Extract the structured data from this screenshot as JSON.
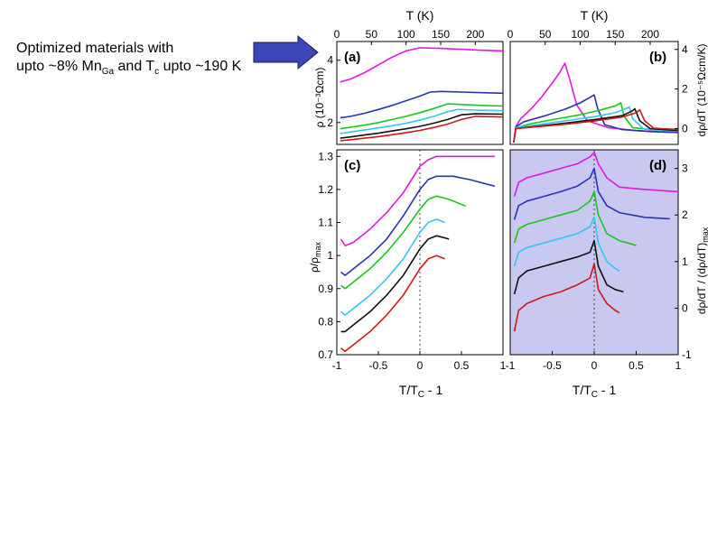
{
  "annotation": {
    "line1": "Optimized materials with",
    "line2_prefix": "upto ~8% Mn",
    "line2_sub1": "Ga",
    "line2_mid": " and T",
    "line2_sub2": "c",
    "line2_suffix": " upto ~190 K",
    "arrow_color": "#3b46b8"
  },
  "axes_labels": {
    "top_x": "T (K)",
    "bottom_x_main": "T/T",
    "bottom_x_sub": "C",
    "bottom_x_tail": " - 1",
    "left_top_y": "ρ (10⁻³Ωcm)",
    "left_bottom_y_main": "ρ/ρ",
    "left_bottom_y_sub": "max",
    "right_top_y": "dρ/dT (10⁻⁵Ωcm/K)",
    "right_bottom_y_main": "dρ/dT / (dρ/dT)",
    "right_bottom_y_sub": "max"
  },
  "chart_data": [
    {
      "id": "a",
      "type": "line",
      "panel_label": "(a)",
      "xlabel": "T (K)",
      "ylabel": "ρ (10⁻³Ωcm)",
      "xlim": [
        0,
        240
      ],
      "ylim": [
        1.3,
        4.6
      ],
      "xticks": [
        "0",
        "50",
        "100",
        "150",
        "200"
      ],
      "yticks": [
        "2",
        "4"
      ],
      "ytick_values": [
        2,
        4
      ],
      "series": [
        {
          "color": "#e018e0",
          "x": [
            5,
            20,
            40,
            60,
            80,
            100,
            120,
            150,
            180,
            210,
            240
          ],
          "y": [
            3.3,
            3.4,
            3.6,
            3.85,
            4.1,
            4.3,
            4.4,
            4.38,
            4.35,
            4.32,
            4.3
          ]
        },
        {
          "color": "#2832b4",
          "x": [
            5,
            20,
            40,
            60,
            80,
            100,
            120,
            135,
            150,
            180,
            210,
            240
          ],
          "y": [
            2.15,
            2.2,
            2.3,
            2.42,
            2.55,
            2.7,
            2.85,
            2.98,
            3.0,
            2.98,
            2.96,
            2.94
          ]
        },
        {
          "color": "#18c818",
          "x": [
            5,
            20,
            40,
            60,
            80,
            100,
            120,
            140,
            160,
            180,
            210,
            240
          ],
          "y": [
            1.8,
            1.85,
            1.92,
            2.0,
            2.1,
            2.2,
            2.32,
            2.45,
            2.6,
            2.58,
            2.55,
            2.53
          ]
        },
        {
          "color": "#30c8f0",
          "x": [
            5,
            20,
            40,
            60,
            80,
            100,
            120,
            140,
            160,
            175,
            200,
            240
          ],
          "y": [
            1.65,
            1.7,
            1.76,
            1.83,
            1.9,
            1.98,
            2.08,
            2.2,
            2.35,
            2.42,
            2.4,
            2.38
          ]
        },
        {
          "color": "#101010",
          "x": [
            5,
            20,
            40,
            60,
            80,
            100,
            120,
            140,
            160,
            180,
            200,
            240
          ],
          "y": [
            1.5,
            1.54,
            1.6,
            1.66,
            1.73,
            1.8,
            1.88,
            1.98,
            2.1,
            2.25,
            2.28,
            2.27
          ]
        },
        {
          "color": "#d01818",
          "x": [
            5,
            20,
            40,
            60,
            80,
            100,
            120,
            140,
            160,
            180,
            200,
            240
          ],
          "y": [
            1.42,
            1.45,
            1.5,
            1.55,
            1.61,
            1.68,
            1.75,
            1.84,
            1.95,
            2.1,
            2.2,
            2.18
          ]
        }
      ]
    },
    {
      "id": "b",
      "type": "line",
      "panel_label": "(b)",
      "xlabel": "T (K)",
      "ylabel": "dρ/dT (10⁻⁵Ωcm/K)",
      "xlim": [
        0,
        240
      ],
      "ylim": [
        -0.8,
        4.4
      ],
      "xticks": [
        "0",
        "50",
        "100",
        "150",
        "200"
      ],
      "yticks": [
        "0",
        "2",
        "4"
      ],
      "ytick_values": [
        0,
        2,
        4
      ],
      "series": [
        {
          "color": "#e018e0",
          "x": [
            5,
            8,
            15,
            30,
            45,
            60,
            70,
            78,
            85,
            95,
            110,
            140,
            180,
            240
          ],
          "y": [
            -0.7,
            0.1,
            0.5,
            1.0,
            1.6,
            2.3,
            2.8,
            3.3,
            2.5,
            1.2,
            0.4,
            0.05,
            -0.1,
            -0.2
          ]
        },
        {
          "color": "#2832b4",
          "x": [
            5,
            8,
            20,
            50,
            80,
            100,
            115,
            120,
            125,
            135,
            160,
            200,
            240
          ],
          "y": [
            -0.7,
            0.1,
            0.35,
            0.65,
            1.0,
            1.3,
            1.6,
            1.7,
            1.0,
            0.2,
            -0.05,
            -0.15,
            -0.2
          ]
        },
        {
          "color": "#18c818",
          "x": [
            5,
            8,
            30,
            60,
            100,
            130,
            150,
            158,
            163,
            175,
            200,
            240
          ],
          "y": [
            -0.7,
            0.05,
            0.25,
            0.45,
            0.7,
            0.95,
            1.15,
            1.3,
            0.6,
            0.05,
            -0.05,
            -0.1
          ]
        },
        {
          "color": "#30c8f0",
          "x": [
            5,
            8,
            40,
            80,
            120,
            150,
            165,
            170,
            175,
            190,
            215,
            240
          ],
          "y": [
            -0.7,
            0.05,
            0.2,
            0.4,
            0.6,
            0.8,
            1.0,
            1.1,
            0.5,
            0.0,
            -0.1,
            -0.12
          ]
        },
        {
          "color": "#101010",
          "x": [
            5,
            8,
            40,
            80,
            120,
            160,
            175,
            178,
            185,
            200,
            240
          ],
          "y": [
            -0.7,
            0.0,
            0.12,
            0.28,
            0.45,
            0.65,
            0.9,
            1.0,
            0.4,
            0.0,
            -0.1
          ]
        },
        {
          "color": "#d01818",
          "x": [
            5,
            8,
            40,
            80,
            120,
            160,
            180,
            185,
            192,
            205,
            240
          ],
          "y": [
            -0.7,
            0.0,
            0.1,
            0.22,
            0.38,
            0.58,
            0.8,
            0.95,
            0.4,
            0.02,
            -0.05
          ]
        }
      ]
    },
    {
      "id": "c",
      "type": "line",
      "panel_label": "(c)",
      "xlabel": "T/TC - 1",
      "ylabel": "ρ/ρmax",
      "xlim": [
        -1,
        1
      ],
      "ylim": [
        0.7,
        1.32
      ],
      "xticks": [
        "-1",
        "-0.5",
        "0",
        "0.5",
        "1"
      ],
      "xtick_values": [
        -1,
        -0.5,
        0,
        0.5,
        1
      ],
      "yticks": [
        "0.7",
        "0.8",
        "0.9",
        "1",
        "1.1",
        "1.2",
        "1.3"
      ],
      "ytick_values": [
        0.7,
        0.8,
        0.9,
        1.0,
        1.1,
        1.2,
        1.3
      ],
      "vline_x": 0,
      "series": [
        {
          "color": "#e018e0",
          "x": [
            -0.95,
            -0.9,
            -0.8,
            -0.6,
            -0.4,
            -0.2,
            0,
            0.1,
            0.2,
            0.4,
            0.6,
            0.9
          ],
          "y": [
            1.05,
            1.03,
            1.04,
            1.08,
            1.13,
            1.19,
            1.27,
            1.29,
            1.3,
            1.3,
            1.3,
            1.3
          ]
        },
        {
          "color": "#2832b4",
          "x": [
            -0.95,
            -0.9,
            -0.8,
            -0.6,
            -0.4,
            -0.2,
            0,
            0.1,
            0.2,
            0.4,
            0.6,
            0.9
          ],
          "y": [
            0.95,
            0.94,
            0.96,
            1.0,
            1.05,
            1.12,
            1.2,
            1.23,
            1.24,
            1.24,
            1.23,
            1.21
          ]
        },
        {
          "color": "#18c818",
          "x": [
            -0.95,
            -0.9,
            -0.8,
            -0.6,
            -0.4,
            -0.2,
            0,
            0.1,
            0.2,
            0.35,
            0.55
          ],
          "y": [
            0.91,
            0.9,
            0.92,
            0.96,
            1.01,
            1.07,
            1.14,
            1.17,
            1.18,
            1.17,
            1.15
          ]
        },
        {
          "color": "#30c8f0",
          "x": [
            -0.95,
            -0.9,
            -0.8,
            -0.6,
            -0.4,
            -0.2,
            0,
            0.1,
            0.2,
            0.3
          ],
          "y": [
            0.83,
            0.82,
            0.84,
            0.88,
            0.93,
            0.99,
            1.07,
            1.1,
            1.11,
            1.1
          ]
        },
        {
          "color": "#101010",
          "x": [
            -0.95,
            -0.9,
            -0.8,
            -0.6,
            -0.4,
            -0.2,
            0,
            0.1,
            0.2,
            0.35
          ],
          "y": [
            0.77,
            0.77,
            0.79,
            0.83,
            0.88,
            0.94,
            1.02,
            1.05,
            1.06,
            1.05
          ]
        },
        {
          "color": "#d01818",
          "x": [
            -0.95,
            -0.9,
            -0.8,
            -0.6,
            -0.4,
            -0.2,
            0,
            0.1,
            0.2,
            0.3
          ],
          "y": [
            0.72,
            0.71,
            0.73,
            0.77,
            0.82,
            0.88,
            0.96,
            0.99,
            1.0,
            0.99
          ]
        }
      ]
    },
    {
      "id": "d",
      "type": "line",
      "panel_label": "(d)",
      "xlabel": "T/TC - 1",
      "ylabel": "dρ/dT / (dρ/dT)max",
      "xlim": [
        -1,
        1
      ],
      "ylim": [
        -1.0,
        3.4
      ],
      "xticks": [
        "-1",
        "-0.5",
        "0",
        "0.5",
        "1"
      ],
      "xtick_values": [
        -1,
        -0.5,
        0,
        0.5,
        1
      ],
      "yticks": [
        "-1",
        "0",
        "1",
        "2",
        "3"
      ],
      "ytick_values": [
        -1,
        0,
        1,
        2,
        3
      ],
      "vline_x": 0,
      "background": "#c8c8f0",
      "series": [
        {
          "color": "#e018e0",
          "x": [
            -0.95,
            -0.9,
            -0.8,
            -0.6,
            -0.4,
            -0.2,
            -0.05,
            0,
            0.05,
            0.15,
            0.3,
            0.6,
            1.0
          ],
          "y": [
            2.4,
            2.7,
            2.8,
            2.9,
            3.0,
            3.1,
            3.25,
            3.35,
            3.1,
            2.8,
            2.6,
            2.55,
            2.5
          ]
        },
        {
          "color": "#2832b4",
          "x": [
            -0.95,
            -0.9,
            -0.8,
            -0.6,
            -0.4,
            -0.2,
            -0.05,
            0,
            0.05,
            0.15,
            0.3,
            0.6,
            0.9
          ],
          "y": [
            1.9,
            2.2,
            2.3,
            2.4,
            2.5,
            2.62,
            2.8,
            3.0,
            2.5,
            2.2,
            2.05,
            1.95,
            1.92
          ]
        },
        {
          "color": "#18c818",
          "x": [
            -0.95,
            -0.9,
            -0.8,
            -0.6,
            -0.4,
            -0.2,
            -0.05,
            0,
            0.05,
            0.15,
            0.3,
            0.5
          ],
          "y": [
            1.4,
            1.7,
            1.8,
            1.9,
            2.0,
            2.1,
            2.3,
            2.5,
            2.0,
            1.6,
            1.45,
            1.35
          ]
        },
        {
          "color": "#30c8f0",
          "x": [
            -0.95,
            -0.9,
            -0.8,
            -0.6,
            -0.4,
            -0.2,
            -0.05,
            0,
            0.05,
            0.15,
            0.25,
            0.3
          ],
          "y": [
            0.9,
            1.2,
            1.3,
            1.4,
            1.5,
            1.6,
            1.75,
            1.95,
            1.4,
            1.0,
            0.85,
            0.8
          ]
        },
        {
          "color": "#101010",
          "x": [
            -0.95,
            -0.9,
            -0.8,
            -0.6,
            -0.4,
            -0.2,
            -0.05,
            0,
            0.05,
            0.15,
            0.25,
            0.35
          ],
          "y": [
            0.3,
            0.65,
            0.8,
            0.9,
            1.0,
            1.1,
            1.2,
            1.45,
            0.9,
            0.5,
            0.4,
            0.35
          ]
        },
        {
          "color": "#d01818",
          "x": [
            -0.95,
            -0.9,
            -0.8,
            -0.6,
            -0.4,
            -0.2,
            -0.05,
            0,
            0.05,
            0.15,
            0.25,
            0.3
          ],
          "y": [
            -0.5,
            -0.05,
            0.1,
            0.25,
            0.35,
            0.5,
            0.65,
            0.95,
            0.4,
            0.1,
            -0.05,
            -0.1
          ]
        }
      ]
    }
  ]
}
